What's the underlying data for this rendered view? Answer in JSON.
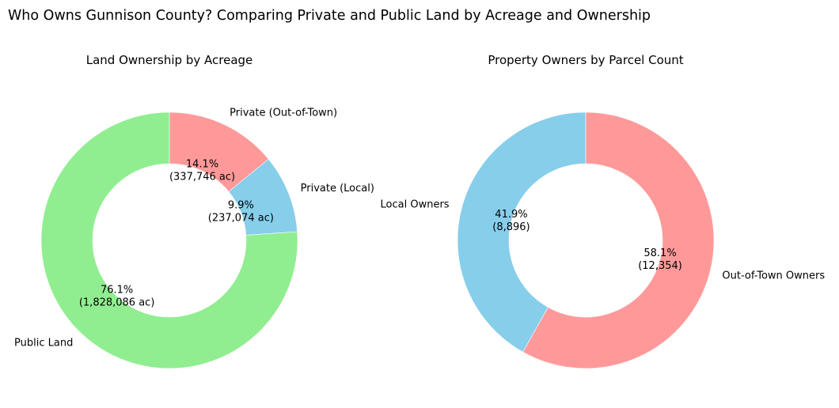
{
  "figure": {
    "title": "Who Owns Gunnison County? Comparing Private and Public Land by Acreage and Ownership"
  },
  "chart_data": [
    {
      "type": "pie",
      "style": "donut",
      "title": "Land Ownership by Acreage",
      "start_angle_deg": 90,
      "direction": "clockwise",
      "slices": [
        {
          "label": "Private (Out-of-Town)",
          "value": 337746,
          "percent_text": "14.1%",
          "value_text": "(337,746 ac)",
          "color": "#ff9999"
        },
        {
          "label": "Private (Local)",
          "value": 237074,
          "percent_text": "9.9%",
          "value_text": "(237,074 ac)",
          "color": "#87ceeb"
        },
        {
          "label": "Public Land",
          "value": 1828086,
          "percent_text": "76.1%",
          "value_text": "(1,828,086 ac)",
          "color": "#90ee90"
        }
      ]
    },
    {
      "type": "pie",
      "style": "donut",
      "title": "Property Owners by Parcel Count",
      "start_angle_deg": 90,
      "direction": "counterclockwise",
      "slices": [
        {
          "label": "Local Owners",
          "value": 8896,
          "percent_text": "41.9%",
          "value_text": "(8,896)",
          "color": "#87ceeb"
        },
        {
          "label": "Out-of-Town Owners",
          "value": 12354,
          "percent_text": "58.1%",
          "value_text": "(12,354)",
          "color": "#ff9999"
        }
      ]
    }
  ]
}
